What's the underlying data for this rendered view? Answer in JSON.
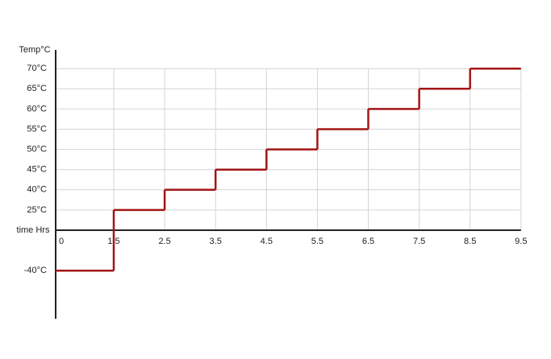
{
  "chart_data": {
    "type": "step",
    "y_label": "Temp°C",
    "x_label": "time Hrs",
    "x": [
      0,
      1.5,
      2.5,
      3.5,
      4.5,
      5.5,
      6.5,
      7.5,
      8.5
    ],
    "series": [
      {
        "color": "#a31515",
        "values": [
          -40,
          25,
          40,
          45,
          50,
          55,
          60,
          65,
          70
        ]
      }
    ],
    "xlim": [
      0,
      9.5
    ],
    "xticks": [
      0,
      1.5,
      2.5,
      3.5,
      4.5,
      5.5,
      6.5,
      7.5,
      8.5,
      9.5
    ],
    "ylim": [
      -40,
      70
    ],
    "yticks": [
      {
        "value": -40,
        "label": "-40°C"
      },
      {
        "value": 25,
        "label": "25°C"
      },
      {
        "value": 40,
        "label": "40°C"
      },
      {
        "value": 45,
        "label": "45°C"
      },
      {
        "value": 50,
        "label": "50°C"
      },
      {
        "value": 55,
        "label": "55°C"
      },
      {
        "value": 60,
        "label": "60°C"
      },
      {
        "value": 65,
        "label": "65°C"
      },
      {
        "value": 70,
        "label": "70°C"
      }
    ],
    "grid": true
  }
}
